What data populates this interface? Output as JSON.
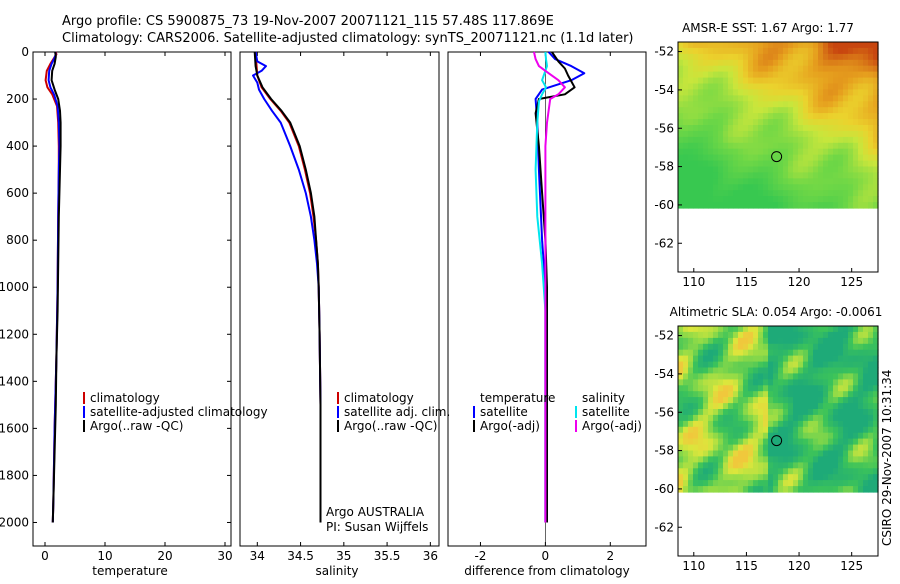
{
  "title": {
    "line1": "Argo profile: CS 5900875_73 19-Nov-2007 20071121_115 57.48S 117.869E",
    "line2": "Climatology: CARS2006. Satellite-adjusted climatology: synTS_20071121.nc (1.1d later)"
  },
  "colors": {
    "clim": "#cc0000",
    "sat": "#0000ff",
    "argo": "#000000",
    "sat_sal_diff": "#00e5ee",
    "argo_sal_diff": "#ee00ee"
  },
  "chart_data": [
    {
      "type": "line",
      "id": "temperature",
      "xlabel": "temperature",
      "ylabel": "",
      "xlim": [
        -2,
        31
      ],
      "ylim": [
        0,
        2100
      ],
      "xticks": [
        0,
        10,
        20,
        30
      ],
      "yticks": [
        0,
        200,
        400,
        600,
        800,
        1000,
        1200,
        1400,
        1600,
        1800,
        2000
      ],
      "legend": [
        "climatology",
        "satellite-adjusted climatology",
        "Argo(..raw -QC)"
      ],
      "series": [
        {
          "name": "climatology",
          "color": "clim",
          "points": [
            [
              1.8,
              0
            ],
            [
              1.9,
              10
            ],
            [
              1.4,
              30
            ],
            [
              0.9,
              50
            ],
            [
              0.3,
              80
            ],
            [
              0.1,
              120
            ],
            [
              0.4,
              150
            ],
            [
              1.2,
              180
            ],
            [
              2.0,
              230
            ],
            [
              2.2,
              300
            ],
            [
              2.3,
              400
            ],
            [
              2.3,
              500
            ],
            [
              2.2,
              700
            ],
            [
              2.1,
              1000
            ],
            [
              1.9,
              1300
            ],
            [
              1.6,
              1600
            ],
            [
              1.4,
              1900
            ],
            [
              1.3,
              2000
            ]
          ]
        },
        {
          "name": "satellite-adjusted climatology",
          "color": "sat",
          "points": [
            [
              1.7,
              0
            ],
            [
              1.8,
              10
            ],
            [
              1.5,
              30
            ],
            [
              1.1,
              50
            ],
            [
              0.7,
              80
            ],
            [
              0.6,
              120
            ],
            [
              0.9,
              150
            ],
            [
              1.5,
              180
            ],
            [
              2.1,
              230
            ],
            [
              2.3,
              300
            ],
            [
              2.4,
              400
            ],
            [
              2.3,
              500
            ],
            [
              2.2,
              700
            ],
            [
              2.1,
              1000
            ],
            [
              1.9,
              1300
            ],
            [
              1.6,
              1600
            ],
            [
              1.4,
              1900
            ],
            [
              1.3,
              2000
            ]
          ]
        },
        {
          "name": "Argo(..raw -QC)",
          "color": "argo",
          "points": [
            [
              1.7,
              0
            ],
            [
              1.8,
              20
            ],
            [
              1.6,
              50
            ],
            [
              1.2,
              80
            ],
            [
              1.1,
              120
            ],
            [
              1.6,
              160
            ],
            [
              2.2,
              200
            ],
            [
              2.5,
              250
            ],
            [
              2.6,
              300
            ],
            [
              2.6,
              400
            ],
            [
              2.5,
              500
            ],
            [
              2.3,
              700
            ],
            [
              2.2,
              900
            ],
            [
              2.1,
              1100
            ],
            [
              1.9,
              1300
            ],
            [
              1.8,
              1500
            ],
            [
              1.6,
              1700
            ],
            [
              1.4,
              1900
            ],
            [
              1.3,
              2000
            ]
          ]
        }
      ]
    },
    {
      "type": "line",
      "id": "salinity",
      "xlabel": "salinity",
      "xlim": [
        33.8,
        36.1
      ],
      "ylim": [
        0,
        2100
      ],
      "xticks": [
        34,
        34.5,
        35,
        35.5,
        36
      ],
      "yticks": [],
      "legend": [
        "climatology",
        "satellite adj. clim.",
        "Argo(..raw -QC)"
      ],
      "series": [
        {
          "name": "climatology",
          "color": "clim",
          "points": [
            [
              33.98,
              0
            ],
            [
              33.99,
              50
            ],
            [
              34.0,
              100
            ],
            [
              34.05,
              150
            ],
            [
              34.15,
              200
            ],
            [
              34.27,
              250
            ],
            [
              34.37,
              300
            ],
            [
              34.48,
              400
            ],
            [
              34.55,
              500
            ],
            [
              34.61,
              600
            ],
            [
              34.65,
              700
            ],
            [
              34.68,
              800
            ],
            [
              34.7,
              900
            ],
            [
              34.71,
              1000
            ],
            [
              34.72,
              1200
            ],
            [
              34.73,
              1500
            ],
            [
              34.73,
              2000
            ]
          ]
        },
        {
          "name": "satellite adj. clim.",
          "color": "sat",
          "points": [
            [
              33.98,
              0
            ],
            [
              34.0,
              40
            ],
            [
              34.1,
              60
            ],
            [
              34.05,
              80
            ],
            [
              33.95,
              100
            ],
            [
              34.0,
              130
            ],
            [
              34.02,
              160
            ],
            [
              34.08,
              200
            ],
            [
              34.17,
              250
            ],
            [
              34.27,
              300
            ],
            [
              34.38,
              400
            ],
            [
              34.48,
              500
            ],
            [
              34.56,
              600
            ],
            [
              34.62,
              700
            ],
            [
              34.66,
              800
            ],
            [
              34.69,
              900
            ],
            [
              34.71,
              1000
            ],
            [
              34.72,
              1200
            ],
            [
              34.73,
              1500
            ],
            [
              34.73,
              2000
            ]
          ]
        },
        {
          "name": "Argo(..raw -QC)",
          "color": "argo",
          "points": [
            [
              33.97,
              0
            ],
            [
              33.98,
              60
            ],
            [
              34.0,
              100
            ],
            [
              34.06,
              150
            ],
            [
              34.16,
              200
            ],
            [
              34.28,
              250
            ],
            [
              34.38,
              300
            ],
            [
              34.49,
              400
            ],
            [
              34.56,
              500
            ],
            [
              34.62,
              600
            ],
            [
              34.66,
              700
            ],
            [
              34.68,
              800
            ],
            [
              34.7,
              900
            ],
            [
              34.71,
              1000
            ],
            [
              34.72,
              1200
            ],
            [
              34.73,
              1500
            ],
            [
              34.73,
              2000
            ]
          ]
        }
      ]
    },
    {
      "type": "line",
      "id": "difference",
      "xlabel": "difference from climatology",
      "xlim": [
        -3,
        3.1
      ],
      "ylim": [
        0,
        2100
      ],
      "xticks": [
        -2,
        0,
        2
      ],
      "yticks": [],
      "legend": [
        "temperature",
        "satellite",
        "Argo(-adj)",
        "salinity",
        "satellite",
        "Argo(-adj)"
      ],
      "series": [
        {
          "name": "temperature satellite",
          "color": "sat",
          "points": [
            [
              0.1,
              0
            ],
            [
              0.3,
              30
            ],
            [
              0.8,
              60
            ],
            [
              1.2,
              90
            ],
            [
              0.8,
              120
            ],
            [
              -0.1,
              160
            ],
            [
              -0.3,
              200
            ],
            [
              -0.25,
              300
            ],
            [
              -0.2,
              500
            ],
            [
              -0.1,
              800
            ],
            [
              0,
              1000
            ],
            [
              0,
              2000
            ]
          ]
        },
        {
          "name": "temperature Argo(-adj)",
          "color": "argo",
          "points": [
            [
              0.2,
              0
            ],
            [
              0.4,
              40
            ],
            [
              0.6,
              70
            ],
            [
              0.7,
              100
            ],
            [
              0.9,
              150
            ],
            [
              0.6,
              180
            ],
            [
              -0.2,
              200
            ],
            [
              -0.3,
              260
            ],
            [
              -0.2,
              400
            ],
            [
              -0.1,
              600
            ],
            [
              0,
              800
            ],
            [
              0.05,
              1000
            ],
            [
              0.05,
              1500
            ],
            [
              0.05,
              2000
            ]
          ]
        },
        {
          "name": "salinity satellite",
          "color": "sat_sal_diff",
          "points": [
            [
              0,
              0
            ],
            [
              0.02,
              30
            ],
            [
              0.05,
              60
            ],
            [
              -0.1,
              120
            ],
            [
              0.02,
              150
            ],
            [
              -0.1,
              180
            ],
            [
              -0.2,
              210
            ],
            [
              -0.25,
              300
            ],
            [
              -0.3,
              500
            ],
            [
              -0.25,
              700
            ],
            [
              -0.1,
              900
            ],
            [
              0,
              1100
            ],
            [
              0,
              2000
            ]
          ]
        },
        {
          "name": "salinity Argo(-adj)",
          "color": "argo_sal_diff",
          "points": [
            [
              -0.35,
              0
            ],
            [
              -0.3,
              30
            ],
            [
              -0.2,
              60
            ],
            [
              0.1,
              90
            ],
            [
              0.4,
              120
            ],
            [
              0.6,
              150
            ],
            [
              0.4,
              180
            ],
            [
              0.15,
              200
            ],
            [
              0.05,
              300
            ],
            [
              0,
              400
            ],
            [
              0,
              2000
            ]
          ]
        }
      ]
    }
  ],
  "maps": [
    {
      "title": "AMSR-E SST: 1.67 Argo: 1.77",
      "type": "sst",
      "xticks": [
        "110",
        "115",
        "120",
        "125"
      ],
      "yticks": [
        "-52",
        "-54",
        "-56",
        "-58",
        "-60",
        "-62"
      ]
    },
    {
      "title": "Altimetric SLA: 0.054 Argo: -0.0061",
      "type": "sla",
      "xticks": [
        "110",
        "115",
        "120",
        "125"
      ],
      "yticks": [
        "-52",
        "-54",
        "-56",
        "-58",
        "-60",
        "-62"
      ]
    }
  ],
  "annotations": {
    "agency": "Argo AUSTRALIA",
    "pi": "PI: Susan Wijffels",
    "credit": "CSIRO 29-Nov-2007 10:31:34"
  }
}
